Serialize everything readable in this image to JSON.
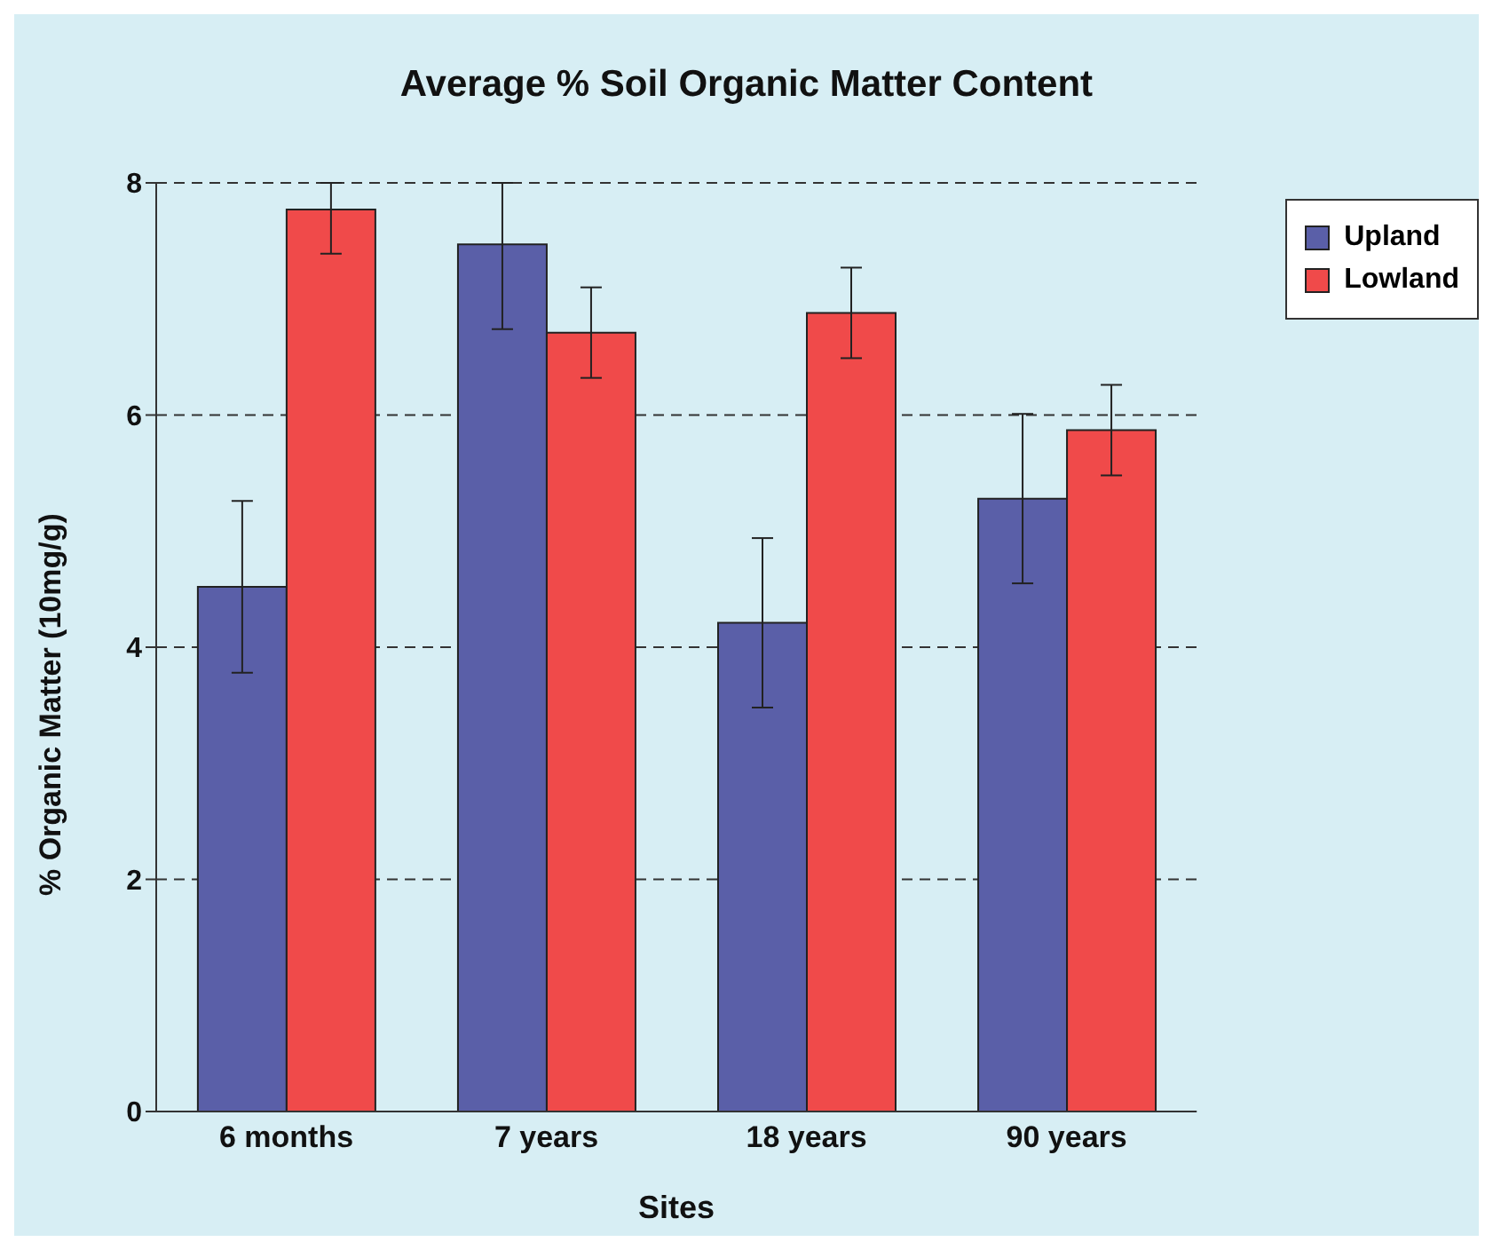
{
  "chart_data": {
    "type": "bar",
    "title": "Average % Soil Organic Matter Content",
    "xlabel": "Sites",
    "ylabel": "% Organic Matter (10mg/g)",
    "categories": [
      "6 months",
      "7 years",
      "18 years",
      "90 years"
    ],
    "series": [
      {
        "name": "Upland",
        "color": "#5a5fa8",
        "values": [
          4.52,
          7.47,
          4.21,
          5.28
        ],
        "errors": [
          0.74,
          [
            6.74,
            8.0
          ],
          0.73,
          0.73
        ]
      },
      {
        "name": "Lowland",
        "color": "#f04a4a",
        "values": [
          7.77,
          6.71,
          6.88,
          5.87
        ],
        "errors": [
          [
            7.39,
            8.0
          ],
          0.39,
          0.39,
          0.39
        ]
      }
    ],
    "ylim": [
      0,
      8
    ],
    "yticks": [
      0,
      2,
      4,
      6,
      8
    ],
    "grid": "y",
    "legend": "top right"
  }
}
